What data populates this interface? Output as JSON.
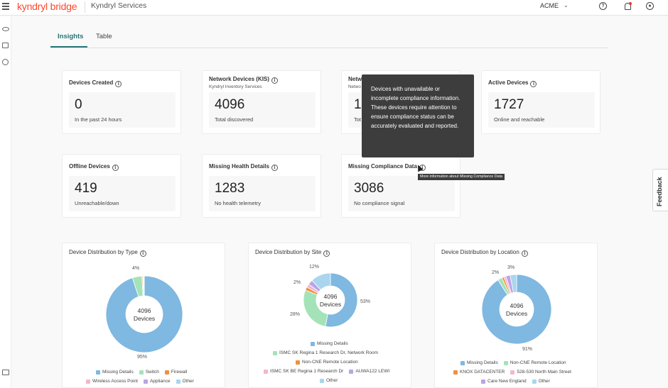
{
  "header": {
    "brand": "kyndryl bridge",
    "service": "Kyndryl Services",
    "tenant": "ACME"
  },
  "tabs": [
    {
      "label": "Insights",
      "active": true
    },
    {
      "label": "Table",
      "active": false
    }
  ],
  "cards": [
    {
      "title": "Devices Created",
      "subtitle": "",
      "value": "0",
      "caption": "In the past 24 hours"
    },
    {
      "title": "Network Devices (KIS)",
      "subtitle": "Kyndryl Inventory Services",
      "value": "4096",
      "caption": "Total discovered"
    },
    {
      "title": "Netwo",
      "subtitle": "Netwo",
      "value": "10",
      "caption": "Tot"
    },
    {
      "title": "Active Devices",
      "subtitle": "",
      "value": "1727",
      "caption": "Online and reachable"
    },
    {
      "title": "Offline Devices",
      "subtitle": "",
      "value": "419",
      "caption": "Unreachable/down"
    },
    {
      "title": "Missing Health Details",
      "subtitle": "",
      "value": "1283",
      "caption": "No health telemetry"
    },
    {
      "title": "Missing Compliance Data",
      "subtitle": "",
      "value": "3086",
      "caption": "No compliance signal"
    }
  ],
  "tooltip": {
    "text": "Devices with unavailable or incomplete compliance information. These devices require attention to ensure compliance status can be accurately evaluated and reported.",
    "mini": "More information about Missing Compliance Data"
  },
  "feedback_label": "Feedback",
  "colors": {
    "accent": "#297574",
    "brand": "#ff462d",
    "missing": "#7fb8e1",
    "switch": "#a4e3b8",
    "firewall": "#f0913c",
    "wap": "#f5b5cf",
    "appliance": "#b9a5e6",
    "other": "#a9d6ee"
  },
  "chart_data": [
    {
      "type": "pie",
      "title": "Device Distribution by Type",
      "center_value": "4096",
      "center_label": "Devices",
      "slices": [
        {
          "label": "Missing Details",
          "value": 95,
          "color": "#7fb8e1"
        },
        {
          "label": "Switch",
          "value": 4,
          "color": "#a4e3b8"
        },
        {
          "label": "Firewall",
          "value": 0.4,
          "color": "#f0913c"
        },
        {
          "label": "Wireless Access Point",
          "value": 0.3,
          "color": "#f5b5cf"
        },
        {
          "label": "Appliance",
          "value": 0.2,
          "color": "#b9a5e6"
        },
        {
          "label": "Other",
          "value": 0.1,
          "color": "#a9d6ee"
        }
      ],
      "annotations": [
        "95%",
        "4%"
      ]
    },
    {
      "type": "pie",
      "title": "Device Distribution by Site",
      "center_value": "4096",
      "center_label": "Devices",
      "slices": [
        {
          "label": "Missing Details",
          "value": 53,
          "color": "#7fb8e1"
        },
        {
          "label": "ISMC SK Regina 1 Research Dr, Network Room",
          "value": 28,
          "color": "#a4e3b8"
        },
        {
          "label": "Non-CNE Remote Location",
          "value": 2,
          "color": "#f0913c"
        },
        {
          "label": "ISMC SK BE Regina 1 Research Dr",
          "value": 2,
          "color": "#f5b5cf"
        },
        {
          "label": "AUWA122 LEWI",
          "value": 3,
          "color": "#b9a5e6"
        },
        {
          "label": "Other",
          "value": 12,
          "color": "#a9d6ee"
        }
      ],
      "annotations": [
        "53%",
        "28%",
        "2%",
        "12%"
      ]
    },
    {
      "type": "pie",
      "title": "Device Distribution by Location",
      "center_value": "4096",
      "center_label": "Devices",
      "slices": [
        {
          "label": "Missing Details",
          "value": 91,
          "color": "#7fb8e1"
        },
        {
          "label": "Non-CNE Remote Location",
          "value": 2,
          "color": "#a4e3b8"
        },
        {
          "label": "KNOX DATACENTER",
          "value": 1,
          "color": "#f0913c"
        },
        {
          "label": "528-530 North Main Street",
          "value": 1,
          "color": "#f5b5cf"
        },
        {
          "label": "Care New England",
          "value": 2,
          "color": "#b9a5e6"
        },
        {
          "label": "Other",
          "value": 3,
          "color": "#a9d6ee"
        }
      ],
      "annotations": [
        "91%",
        "2%",
        "3%"
      ]
    }
  ]
}
